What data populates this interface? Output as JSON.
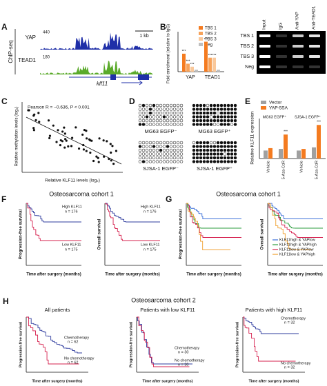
{
  "panels": {
    "A": {
      "letter": "A",
      "assay": "ChIP-seq",
      "tracks": [
        "YAP",
        "TEAD1"
      ],
      "scales": [
        "440",
        "180"
      ],
      "scale_bar": "1 kb",
      "gene": "klf11"
    },
    "B": {
      "letter": "B",
      "y_label": "Fold enrichment (relative to IgG)",
      "legend": [
        "TBS 1",
        "TBS 2",
        "TBS 3",
        "Neg"
      ],
      "colors": [
        "#f47b20",
        "#f6a25a",
        "#f9c89b",
        "#bfbfbf"
      ],
      "categories": [
        "YAP",
        "TEAD1"
      ],
      "values": [
        [
          9,
          4,
          2.5,
          1
        ],
        [
          15,
          7,
          7,
          1
        ]
      ],
      "ylim": [
        0,
        20
      ],
      "significance": "***",
      "gel": {
        "columns": [
          "Input",
          "IgG",
          "Anti-YAP",
          "Anti-TEAD1"
        ],
        "rows": [
          "TBS 1",
          "TBS 2",
          "TBS 3",
          "Neg"
        ]
      }
    },
    "C": {
      "letter": "C",
      "stat": "Pearson R = −0.636, P < 0.001",
      "y_label": "Relative methylation levels (log₂)",
      "x_label": "Relative KLF11 levels (log₂)"
    },
    "D": {
      "letter": "D",
      "samples": [
        "MG63 EGFP⁻",
        "MG63 EGFP⁺",
        "SJSA-1 EGFP⁻",
        "SJSA-1 EGFP⁺"
      ]
    },
    "E": {
      "letter": "E",
      "legend": [
        "Vector",
        "YAP-5SA"
      ],
      "colors": [
        "#a0a0a0",
        "#f47b20"
      ],
      "groups": [
        "MG63 EGFP⁺",
        "SJSA-1 EGFP⁺"
      ],
      "conditions": [
        "Vehicle",
        "5-Aza-CdR"
      ],
      "values": [
        [
          [
            1,
            1.3
          ],
          [
            1.2,
            3
          ]
        ],
        [
          [
            1,
            1.2
          ],
          [
            1.4,
            4.2
          ]
        ]
      ],
      "ylim": [
        0,
        5
      ],
      "y_label": "Relative KLF11 expression",
      "significance": "***"
    },
    "F": {
      "letter": "F",
      "title": "Osteosarcoma cohort 1",
      "y_labels": [
        "Progression-free survival",
        "Overall survival"
      ],
      "high": "High KLF11",
      "high_n": "n = 176",
      "low": "Low KLF11",
      "low_n": "n = 175",
      "x_label": "Time after surgery (months)"
    },
    "G": {
      "letter": "G",
      "title": "Osteosarcoma cohort 1",
      "legend": [
        "KLF11high & YAPlow",
        "KLF11high & YAPhigh",
        "KLF11low & YAPlow",
        "KLF11low & YAPhigh"
      ],
      "colors": [
        "#3a6fd8",
        "#2e9e3f",
        "#d6204e",
        "#f0a030"
      ]
    },
    "H": {
      "letter": "H",
      "title": "Osteosarcoma cohort 2",
      "subtitles": [
        "All patients",
        "Patients with low KLF11",
        "Patients with high KLF11"
      ],
      "chemo": "Chemotherapy",
      "nochemo": "No chemotherapy",
      "n": [
        [
          "n = 62",
          "n = 62"
        ],
        [
          "n = 30",
          "n = 30"
        ],
        [
          "n = 32",
          "n = 32"
        ]
      ],
      "y_label": "Progression-free survival",
      "x_label": "Time after surgery (months)"
    }
  }
}
